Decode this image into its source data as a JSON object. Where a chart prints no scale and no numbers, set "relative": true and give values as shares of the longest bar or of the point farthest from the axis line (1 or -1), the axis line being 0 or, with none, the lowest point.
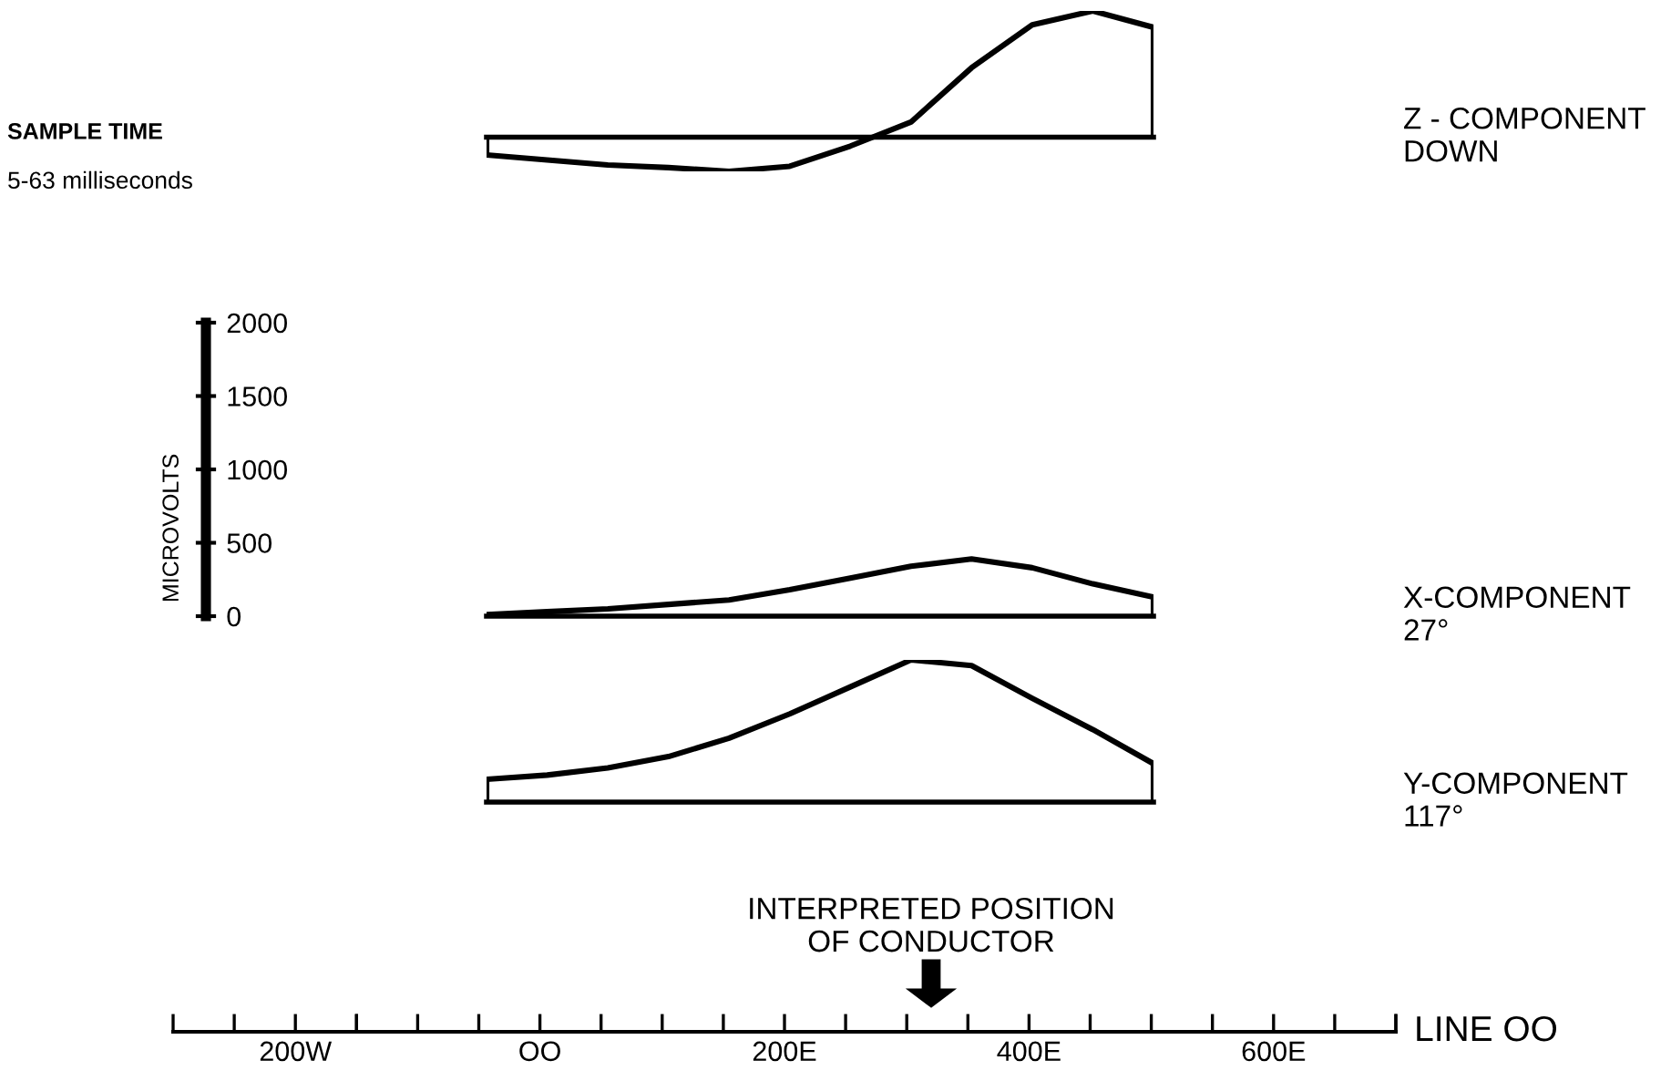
{
  "chart_data": [
    {
      "type": "line",
      "relative": true,
      "categories": [
        null,
        null,
        null,
        null,
        null,
        null,
        null,
        null,
        null,
        null,
        null,
        null
      ],
      "tick_labels": false,
      "marker": "none",
      "line_style": "solid",
      "series": [
        {
          "name": "Z - COMPONENT\nDOWN",
          "color": "#000000",
          "values": [
            -0.14,
            -0.18,
            -0.22,
            -0.24,
            -0.27,
            -0.23,
            -0.07,
            0.12,
            0.55,
            0.89,
            1,
            0.87
          ]
        }
      ]
    },
    {
      "type": "line",
      "categories": [
        null,
        null,
        null,
        null,
        null,
        null,
        null,
        null,
        null,
        null,
        null,
        null
      ],
      "ylim": [
        0,
        2000
      ],
      "yticks": [
        0,
        500,
        1000,
        1500,
        2000
      ],
      "tick_labels": "y",
      "ylabel": "MICROVOLTS",
      "marker": "none",
      "line_style": "solid",
      "annotations": [
        "SAMPLE TIME",
        "5-63 milliseconds"
      ],
      "series": [
        {
          "name": "X-COMPONENT\n27°",
          "color": "#000000",
          "values": [
            10,
            30,
            50,
            80,
            110,
            180,
            260,
            340,
            390,
            330,
            220,
            130
          ]
        }
      ]
    },
    {
      "type": "line",
      "relative": true,
      "categories": [
        null,
        null,
        null,
        null,
        null,
        null,
        null,
        null,
        null,
        null,
        null,
        null
      ],
      "tick_labels": false,
      "marker": "none",
      "line_style": "solid",
      "series": [
        {
          "name": "Y-COMPONENT\n117°",
          "color": "#000000",
          "values": [
            0.16,
            0.19,
            0.24,
            0.32,
            0.45,
            0.62,
            0.81,
            1,
            0.96,
            0.73,
            0.51,
            0.27
          ]
        }
      ]
    },
    {
      "type": "other",
      "categories": [
        "200W",
        "OO",
        "200E",
        "400E",
        "600E"
      ],
      "xlabel": "LINE OO",
      "annotations": [
        "INTERPRETED POSITION\nOF CONDUCTOR"
      ]
    }
  ]
}
